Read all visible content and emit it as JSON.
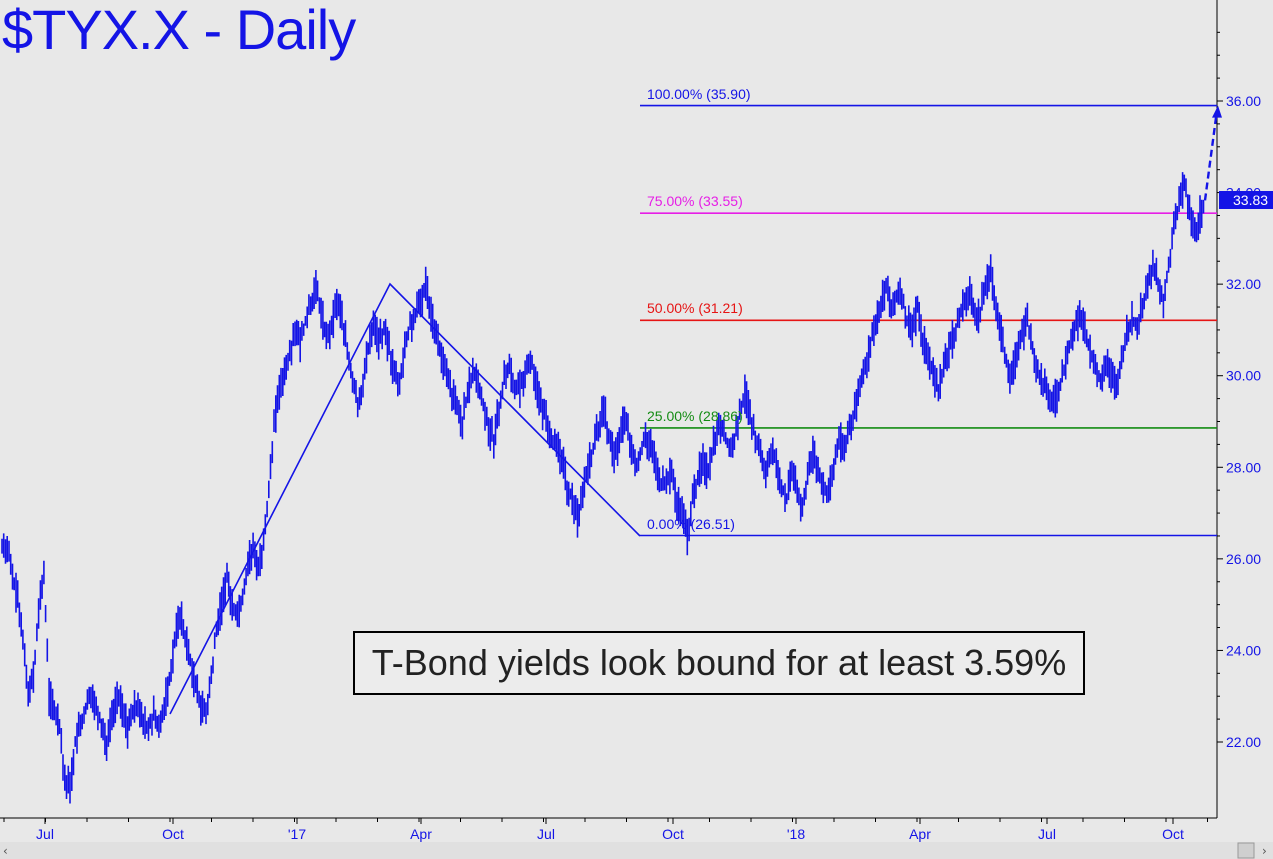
{
  "title": "$TYX.X - Daily",
  "annotation": "T-Bond yields look bound for at least 3.59%",
  "last_price": "33.83",
  "colors": {
    "price": "#1414e6",
    "fib100": "#1414e6",
    "fib75": "#e61ee6",
    "fib50": "#e61414",
    "fib25": "#148c14",
    "fib0": "#1414e6",
    "background": "#e8e8e8"
  },
  "chart_data": {
    "type": "line",
    "title": "$TYX.X - Daily",
    "ylim": [
      20.4,
      38.2
    ],
    "y_ticks": [
      "22.00",
      "24.00",
      "26.00",
      "28.00",
      "30.00",
      "32.00",
      "34.00",
      "36.00"
    ],
    "x_ticks": [
      "Jul",
      "Oct",
      "'17",
      "Apr",
      "Jul",
      "Oct",
      "'18",
      "Apr",
      "Jul",
      "Oct"
    ],
    "fib_levels": [
      {
        "label": "100.00% (35.90)",
        "value": 35.9,
        "color": "#1414e6"
      },
      {
        "label": "75.00% (33.55)",
        "value": 33.55,
        "color": "#e61ee6"
      },
      {
        "label": "50.00% (31.21)",
        "value": 31.21,
        "color": "#e61414"
      },
      {
        "label": "25.00% (28.86)",
        "value": 28.86,
        "color": "#148c14"
      },
      {
        "label": "0.00% (26.51)",
        "value": 26.51,
        "color": "#1414e6"
      }
    ],
    "series": [
      {
        "values": [
          26.3,
          25.6,
          25.1,
          24.2,
          23.2,
          23.4,
          24.8,
          25.7,
          23.0,
          22.7,
          22.4,
          21.2,
          21.0,
          22.0,
          22.4,
          22.7,
          23.1,
          22.8,
          22.4,
          22.0,
          22.5,
          23.0,
          22.7,
          22.3,
          22.6,
          22.9,
          22.4,
          22.3,
          22.6,
          22.2,
          22.8,
          23.4,
          24.2,
          24.8,
          24.3,
          23.8,
          23.2,
          22.8,
          22.6,
          23.4,
          24.5,
          25.0,
          25.6,
          25.0,
          24.8,
          25.2,
          25.9,
          26.2,
          25.8,
          26.3,
          27.6,
          28.9,
          29.6,
          30.1,
          30.5,
          31.0,
          30.7,
          31.2,
          31.6,
          31.9,
          31.4,
          30.8,
          31.1,
          31.6,
          31.3,
          30.5,
          29.9,
          29.4,
          29.8,
          30.6,
          31.2,
          30.7,
          31.0,
          30.6,
          30.0,
          29.9,
          30.6,
          31.1,
          31.3,
          31.6,
          32.0,
          31.4,
          30.9,
          30.4,
          30.0,
          29.6,
          29.3,
          29.0,
          29.6,
          30.1,
          29.8,
          29.4,
          28.9,
          28.6,
          29.3,
          29.9,
          30.2,
          29.8,
          29.7,
          30.1,
          30.4,
          29.9,
          29.3,
          29.1,
          28.7,
          28.4,
          28.2,
          27.6,
          27.3,
          26.9,
          27.4,
          28.0,
          28.4,
          28.9,
          29.3,
          28.7,
          28.2,
          28.5,
          29.1,
          28.6,
          28.0,
          28.3,
          28.7,
          28.4,
          28.0,
          27.6,
          27.7,
          27.9,
          27.2,
          27.0,
          26.5,
          27.3,
          27.8,
          28.1,
          27.9,
          28.5,
          29.0,
          28.8,
          28.4,
          28.6,
          29.2,
          29.6,
          29.1,
          28.7,
          28.2,
          27.8,
          28.4,
          28.1,
          27.6,
          27.3,
          27.9,
          27.5,
          27.1,
          27.8,
          28.3,
          28.0,
          27.6,
          27.4,
          28.0,
          28.6,
          28.4,
          28.9,
          29.2,
          29.7,
          30.2,
          30.7,
          31.2,
          31.6,
          31.9,
          31.4,
          31.7,
          31.8,
          31.2,
          30.9,
          31.5,
          30.8,
          30.4,
          30.0,
          29.7,
          30.2,
          30.6,
          30.9,
          31.3,
          31.6,
          31.8,
          31.2,
          31.4,
          32.0,
          32.3,
          31.6,
          30.9,
          30.3,
          29.9,
          30.6,
          30.9,
          31.2,
          30.6,
          30.1,
          29.8,
          29.6,
          29.4,
          29.7,
          30.1,
          30.6,
          31.0,
          31.3,
          31.0,
          30.5,
          30.2,
          29.9,
          30.3,
          30.0,
          29.8,
          30.4,
          30.9,
          31.2,
          31.1,
          31.5,
          32.1,
          32.4,
          32.0,
          31.6,
          32.4,
          33.2,
          33.8,
          34.2,
          33.6,
          33.1,
          33.5,
          33.83
        ]
      }
    ],
    "projection": {
      "from": 33.83,
      "to": 35.9
    }
  }
}
